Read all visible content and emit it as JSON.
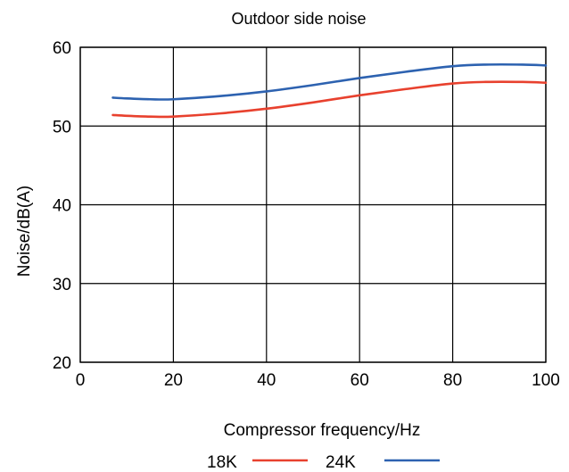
{
  "chart_data": {
    "type": "line",
    "title": "Outdoor side noise",
    "xlabel": "Compressor frequency/Hz",
    "ylabel": "Noise/dB(A)",
    "xlim": [
      0,
      100
    ],
    "ylim": [
      20,
      60
    ],
    "x_ticks": [
      "0",
      "20",
      "40",
      "60",
      "80",
      "100"
    ],
    "y_ticks": [
      "20",
      "30",
      "40",
      "50",
      "60"
    ],
    "grid": true,
    "legend_position": "bottom",
    "series": [
      {
        "name": "18K",
        "color": "#e8412e",
        "x": [
          7,
          10,
          15,
          20,
          30,
          40,
          50,
          60,
          70,
          80,
          87,
          95,
          100
        ],
        "y": [
          51.4,
          51.3,
          51.2,
          51.2,
          51.6,
          52.2,
          53.0,
          53.9,
          54.7,
          55.4,
          55.6,
          55.6,
          55.5
        ]
      },
      {
        "name": "24K",
        "color": "#2d62b0",
        "x": [
          7,
          10,
          15,
          20,
          30,
          40,
          50,
          60,
          70,
          80,
          87,
          95,
          100
        ],
        "y": [
          53.6,
          53.5,
          53.4,
          53.4,
          53.8,
          54.4,
          55.2,
          56.1,
          56.9,
          57.6,
          57.8,
          57.8,
          57.7
        ]
      }
    ]
  }
}
